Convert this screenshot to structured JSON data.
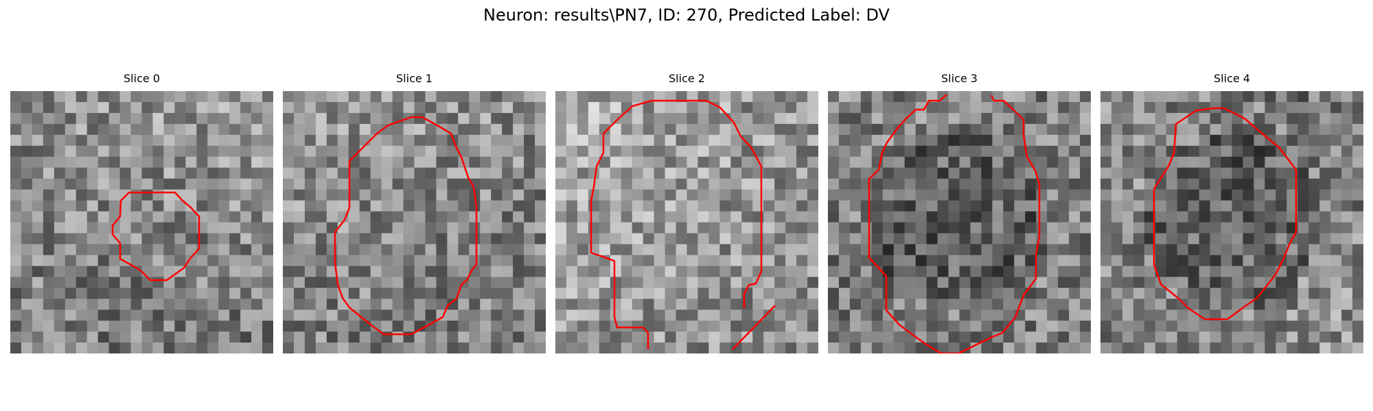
{
  "figure": {
    "title": "Neuron: results\\PN7, ID: 270, Predicted Label: DV"
  },
  "panels": [
    {
      "title": "Slice 0",
      "seed": 11,
      "base_brightness": [
        0.55,
        0.62,
        0.5,
        0.45
      ],
      "dark_center": false
    },
    {
      "title": "Slice 1",
      "seed": 23,
      "base_brightness": [
        0.6,
        0.55,
        0.5,
        0.48
      ],
      "dark_center": false
    },
    {
      "title": "Slice 2",
      "seed": 37,
      "base_brightness": [
        0.68,
        0.58,
        0.6,
        0.55
      ],
      "dark_center": false
    },
    {
      "title": "Slice 3",
      "seed": 41,
      "base_brightness": [
        0.52,
        0.5,
        0.46,
        0.5
      ],
      "dark_center": true
    },
    {
      "title": "Slice 4",
      "seed": 59,
      "base_brightness": [
        0.55,
        0.45,
        0.5,
        0.58
      ],
      "dark_center": true
    }
  ],
  "contour_color": "#ff0000",
  "colormap": "gray"
}
